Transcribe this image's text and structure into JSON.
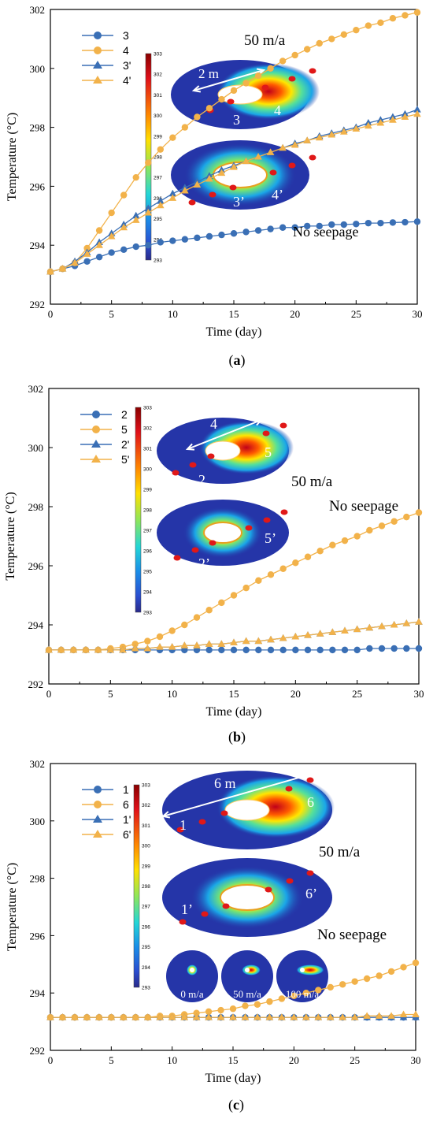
{
  "figure": {
    "accent_blue": "#3a6fb5",
    "accent_orange": "#f2b24a",
    "colorbar_ticks": [
      "303",
      "302",
      "301",
      "300",
      "299",
      "298",
      "297",
      "296",
      "295",
      "294",
      "293"
    ]
  },
  "chart_data": [
    {
      "type": "line",
      "panel_label": "a",
      "xlabel": "Time (day)",
      "ylabel": "Temperature (°C)",
      "xlim": [
        0,
        30
      ],
      "ylim": [
        292,
        302
      ],
      "xticks": [
        0,
        5,
        10,
        15,
        20,
        25,
        30
      ],
      "yticks": [
        292,
        294,
        296,
        298,
        300,
        302
      ],
      "grid": false,
      "legend_position": "top-left",
      "series": [
        {
          "name": "3",
          "marker": "circle",
          "color": "#3a6fb5",
          "x": [
            0,
            1,
            2,
            3,
            4,
            5,
            6,
            7,
            8,
            9,
            10,
            11,
            12,
            13,
            14,
            15,
            16,
            17,
            18,
            19,
            20,
            21,
            22,
            23,
            24,
            25,
            26,
            27,
            28,
            29,
            30
          ],
          "values": [
            293.1,
            293.2,
            293.3,
            293.45,
            293.6,
            293.75,
            293.85,
            293.95,
            294.0,
            294.1,
            294.15,
            294.2,
            294.25,
            294.3,
            294.35,
            294.4,
            294.45,
            294.5,
            294.55,
            294.6,
            294.6,
            294.65,
            294.65,
            294.7,
            294.7,
            294.72,
            294.75,
            294.75,
            294.77,
            294.78,
            294.8
          ]
        },
        {
          "name": "4",
          "marker": "circle",
          "color": "#f2b24a",
          "x": [
            0,
            1,
            2,
            3,
            4,
            5,
            6,
            7,
            8,
            9,
            10,
            11,
            12,
            13,
            14,
            15,
            16,
            17,
            18,
            19,
            20,
            21,
            22,
            23,
            24,
            25,
            26,
            27,
            28,
            29,
            30
          ],
          "values": [
            293.1,
            293.2,
            293.4,
            293.9,
            294.5,
            295.1,
            295.7,
            296.3,
            296.8,
            297.25,
            297.65,
            298.0,
            298.35,
            298.65,
            298.95,
            299.25,
            299.5,
            299.75,
            300.0,
            300.25,
            300.45,
            300.65,
            300.85,
            301.0,
            301.15,
            301.3,
            301.45,
            301.55,
            301.7,
            301.8,
            301.9
          ]
        },
        {
          "name": "3'",
          "marker": "triangle",
          "color": "#3a6fb5",
          "x": [
            0,
            1,
            2,
            3,
            4,
            5,
            6,
            7,
            8,
            9,
            10,
            11,
            12,
            13,
            14,
            15,
            16,
            17,
            18,
            19,
            20,
            21,
            22,
            23,
            24,
            25,
            26,
            27,
            28,
            29,
            30
          ],
          "values": [
            293.1,
            293.2,
            293.45,
            293.75,
            294.1,
            294.4,
            294.7,
            295.0,
            295.25,
            295.5,
            295.75,
            295.95,
            296.15,
            296.35,
            296.55,
            296.7,
            296.85,
            297.0,
            297.15,
            297.3,
            297.45,
            297.55,
            297.7,
            297.8,
            297.9,
            298.0,
            298.15,
            298.25,
            298.35,
            298.45,
            298.6
          ]
        },
        {
          "name": "4'",
          "marker": "triangle",
          "color": "#f2b24a",
          "x": [
            0,
            1,
            2,
            3,
            4,
            5,
            6,
            7,
            8,
            9,
            10,
            11,
            12,
            13,
            14,
            15,
            16,
            17,
            18,
            19,
            20,
            21,
            22,
            23,
            24,
            25,
            26,
            27,
            28,
            29,
            30
          ],
          "values": [
            293.1,
            293.2,
            293.4,
            293.7,
            294.0,
            294.3,
            294.6,
            294.85,
            295.1,
            295.35,
            295.6,
            295.85,
            296.05,
            296.25,
            296.45,
            296.65,
            296.85,
            297.0,
            297.15,
            297.3,
            297.4,
            297.55,
            297.65,
            297.75,
            297.85,
            297.95,
            298.05,
            298.15,
            298.25,
            298.35,
            298.45
          ]
        }
      ],
      "annotations": [
        "50 m/a",
        "No seepage",
        "2 m",
        "3",
        "4",
        "3’",
        "4’"
      ]
    },
    {
      "type": "line",
      "panel_label": "b",
      "xlabel": "Time (day)",
      "ylabel": "Temperature (°C)",
      "xlim": [
        0,
        30
      ],
      "ylim": [
        292,
        302
      ],
      "xticks": [
        0,
        5,
        10,
        15,
        20,
        25,
        30
      ],
      "yticks": [
        292,
        294,
        296,
        298,
        300,
        302
      ],
      "grid": false,
      "legend_position": "top-left",
      "series": [
        {
          "name": "2",
          "marker": "circle",
          "color": "#3a6fb5",
          "x": [
            0,
            1,
            2,
            3,
            4,
            5,
            6,
            7,
            8,
            9,
            10,
            11,
            12,
            13,
            14,
            15,
            16,
            17,
            18,
            19,
            20,
            21,
            22,
            23,
            24,
            25,
            26,
            27,
            28,
            29,
            30
          ],
          "values": [
            293.15,
            293.15,
            293.15,
            293.15,
            293.15,
            293.15,
            293.15,
            293.15,
            293.15,
            293.15,
            293.15,
            293.15,
            293.15,
            293.15,
            293.15,
            293.15,
            293.15,
            293.15,
            293.15,
            293.15,
            293.15,
            293.15,
            293.15,
            293.15,
            293.15,
            293.15,
            293.2,
            293.2,
            293.2,
            293.2,
            293.2
          ]
        },
        {
          "name": "5",
          "marker": "circle",
          "color": "#f2b24a",
          "x": [
            0,
            1,
            2,
            3,
            4,
            5,
            6,
            7,
            8,
            9,
            10,
            11,
            12,
            13,
            14,
            15,
            16,
            17,
            18,
            19,
            20,
            21,
            22,
            23,
            24,
            25,
            26,
            27,
            28,
            29,
            30
          ],
          "values": [
            293.15,
            293.15,
            293.15,
            293.15,
            293.15,
            293.2,
            293.25,
            293.35,
            293.45,
            293.6,
            293.8,
            294.0,
            294.25,
            294.5,
            294.75,
            295.0,
            295.25,
            295.5,
            295.7,
            295.9,
            296.1,
            296.3,
            296.5,
            296.7,
            296.85,
            297.0,
            297.2,
            297.35,
            297.5,
            297.65,
            297.8
          ]
        },
        {
          "name": "2'",
          "marker": "triangle",
          "color": "#3a6fb5",
          "x": [
            0,
            1,
            2,
            3,
            4,
            5,
            6,
            7,
            8,
            9,
            10,
            11,
            12,
            13,
            14,
            15,
            16,
            17,
            18,
            19,
            20,
            21,
            22,
            23,
            24,
            25,
            26,
            27,
            28,
            29,
            30
          ],
          "values": [
            293.15,
            293.15,
            293.15,
            293.15,
            293.15,
            293.15,
            293.15,
            293.2,
            293.2,
            293.25,
            293.25,
            293.3,
            293.3,
            293.35,
            293.35,
            293.4,
            293.45,
            293.45,
            293.5,
            293.55,
            293.6,
            293.65,
            293.7,
            293.75,
            293.8,
            293.85,
            293.9,
            293.95,
            294.0,
            294.05,
            294.1
          ]
        },
        {
          "name": "5'",
          "marker": "triangle",
          "color": "#f2b24a",
          "x": [
            0,
            1,
            2,
            3,
            4,
            5,
            6,
            7,
            8,
            9,
            10,
            11,
            12,
            13,
            14,
            15,
            16,
            17,
            18,
            19,
            20,
            21,
            22,
            23,
            24,
            25,
            26,
            27,
            28,
            29,
            30
          ],
          "values": [
            293.15,
            293.15,
            293.15,
            293.15,
            293.15,
            293.15,
            293.15,
            293.2,
            293.2,
            293.25,
            293.25,
            293.3,
            293.3,
            293.35,
            293.35,
            293.4,
            293.45,
            293.45,
            293.5,
            293.55,
            293.6,
            293.65,
            293.7,
            293.75,
            293.8,
            293.85,
            293.9,
            293.95,
            294.0,
            294.05,
            294.1
          ]
        }
      ],
      "annotations": [
        "50 m/a",
        "No seepage",
        "4",
        "2",
        "5",
        "2’",
        "5’"
      ]
    },
    {
      "type": "line",
      "panel_label": "c",
      "xlabel": "Time (day)",
      "ylabel": "Temperature (°C)",
      "xlim": [
        0,
        30
      ],
      "ylim": [
        292,
        302
      ],
      "xticks": [
        0,
        5,
        10,
        15,
        20,
        25,
        30
      ],
      "yticks": [
        292,
        294,
        296,
        298,
        300,
        302
      ],
      "grid": false,
      "legend_position": "top-left",
      "series": [
        {
          "name": "1",
          "marker": "circle",
          "color": "#3a6fb5",
          "x": [
            0,
            1,
            2,
            3,
            4,
            5,
            6,
            7,
            8,
            9,
            10,
            11,
            12,
            13,
            14,
            15,
            16,
            17,
            18,
            19,
            20,
            21,
            22,
            23,
            24,
            25,
            26,
            27,
            28,
            29,
            30
          ],
          "values": [
            293.15,
            293.15,
            293.15,
            293.15,
            293.15,
            293.15,
            293.15,
            293.15,
            293.15,
            293.15,
            293.15,
            293.15,
            293.15,
            293.15,
            293.15,
            293.15,
            293.15,
            293.15,
            293.15,
            293.15,
            293.15,
            293.15,
            293.15,
            293.15,
            293.15,
            293.15,
            293.15,
            293.15,
            293.15,
            293.15,
            293.15
          ]
        },
        {
          "name": "6",
          "marker": "circle",
          "color": "#f2b24a",
          "x": [
            0,
            1,
            2,
            3,
            4,
            5,
            6,
            7,
            8,
            9,
            10,
            11,
            12,
            13,
            14,
            15,
            16,
            17,
            18,
            19,
            20,
            21,
            22,
            23,
            24,
            25,
            26,
            27,
            28,
            29,
            30
          ],
          "values": [
            293.15,
            293.15,
            293.15,
            293.15,
            293.15,
            293.15,
            293.15,
            293.15,
            293.15,
            293.2,
            293.2,
            293.25,
            293.3,
            293.35,
            293.4,
            293.45,
            293.55,
            293.6,
            293.7,
            293.8,
            293.9,
            294.0,
            294.1,
            294.2,
            294.3,
            294.4,
            294.5,
            294.6,
            294.75,
            294.9,
            295.05
          ]
        },
        {
          "name": "1'",
          "marker": "triangle",
          "color": "#3a6fb5",
          "x": [
            0,
            1,
            2,
            3,
            4,
            5,
            6,
            7,
            8,
            9,
            10,
            11,
            12,
            13,
            14,
            15,
            16,
            17,
            18,
            19,
            20,
            21,
            22,
            23,
            24,
            25,
            26,
            27,
            28,
            29,
            30
          ],
          "values": [
            293.15,
            293.15,
            293.15,
            293.15,
            293.15,
            293.15,
            293.15,
            293.15,
            293.15,
            293.15,
            293.15,
            293.15,
            293.15,
            293.15,
            293.15,
            293.15,
            293.15,
            293.15,
            293.15,
            293.15,
            293.15,
            293.15,
            293.15,
            293.15,
            293.15,
            293.15,
            293.15,
            293.15,
            293.15,
            293.15,
            293.15
          ]
        },
        {
          "name": "6'",
          "marker": "triangle",
          "color": "#f2b24a",
          "x": [
            0,
            1,
            2,
            3,
            4,
            5,
            6,
            7,
            8,
            9,
            10,
            11,
            12,
            13,
            14,
            15,
            16,
            17,
            18,
            19,
            20,
            21,
            22,
            23,
            24,
            25,
            26,
            27,
            28,
            29,
            30
          ],
          "values": [
            293.15,
            293.15,
            293.15,
            293.15,
            293.15,
            293.15,
            293.15,
            293.15,
            293.15,
            293.15,
            293.15,
            293.15,
            293.15,
            293.15,
            293.15,
            293.15,
            293.15,
            293.15,
            293.15,
            293.15,
            293.15,
            293.15,
            293.15,
            293.15,
            293.15,
            293.15,
            293.2,
            293.2,
            293.2,
            293.25,
            293.25
          ]
        }
      ],
      "annotations": [
        "50 m/a",
        "No seepage",
        "6 m",
        "1",
        "6",
        "1’",
        "6’",
        "0 m/a",
        "50 m/a",
        "100 m/a"
      ]
    }
  ]
}
